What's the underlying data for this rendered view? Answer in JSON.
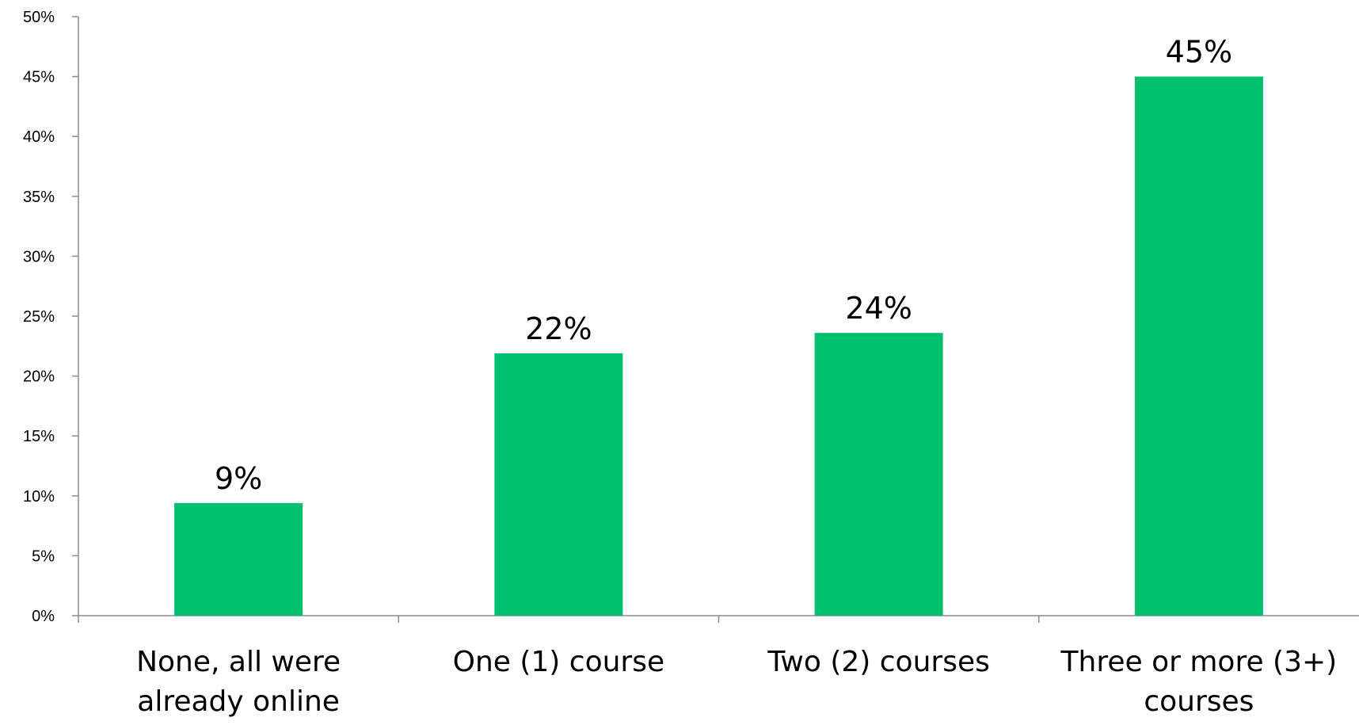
{
  "chart_data": {
    "type": "bar",
    "title": "",
    "xlabel": "",
    "ylabel": "",
    "categories": [
      [
        "None, all were",
        "already online"
      ],
      [
        "One (1) course"
      ],
      [
        "Two (2) courses"
      ],
      [
        "Three or more (3+)",
        "courses"
      ]
    ],
    "values": [
      9.4,
      21.9,
      23.6,
      45.0
    ],
    "data_labels": [
      "9%",
      "22%",
      "24%",
      "45%"
    ],
    "ylim": [
      0,
      50
    ],
    "yticks": [
      0,
      5,
      10,
      15,
      20,
      25,
      30,
      35,
      40,
      45,
      50
    ],
    "ytick_labels": [
      "0%",
      "5%",
      "10%",
      "15%",
      "20%",
      "25%",
      "30%",
      "35%",
      "40%",
      "45%",
      "50%"
    ],
    "bar_color": "#00BF6F",
    "grid": false,
    "legend": "none"
  }
}
